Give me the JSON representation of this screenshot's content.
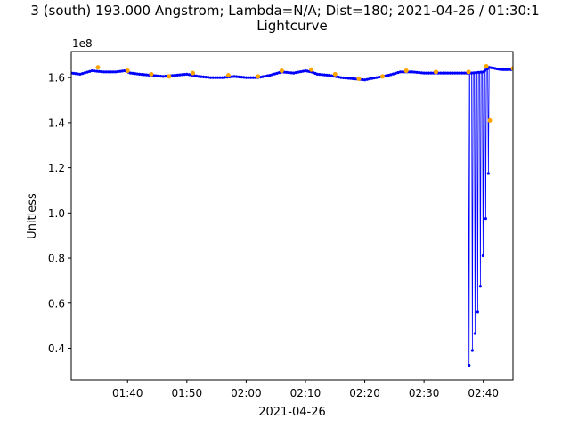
{
  "chart_data": {
    "type": "line",
    "title": "3 (south) 193.000 Angstrom; Lambda=N/A; Dist=180; 2021-04-26 / 01:30:1",
    "subtitle": "Lightcurve",
    "xlabel": "2021-04-26",
    "ylabel": "Unitless",
    "y_offset_label": "1e8",
    "x_unit": "minutes after 2021-04-26 00:00",
    "xlim": [
      90.5,
      165
    ],
    "ylim": [
      0.26,
      1.715
    ],
    "x_ticks": [
      100,
      110,
      120,
      130,
      140,
      150,
      160
    ],
    "x_tick_labels": [
      "01:40",
      "01:50",
      "02:00",
      "02:10",
      "02:20",
      "02:30",
      "02:40"
    ],
    "y_ticks": [
      0.4,
      0.6,
      0.8,
      1.0,
      1.2,
      1.4,
      1.6
    ],
    "y_tick_labels": [
      "0.4",
      "0.6",
      "0.8",
      "1.0",
      "1.2",
      "1.4",
      "1.6"
    ],
    "grid": false,
    "legend": "none",
    "colors": {
      "line": "#0000ff",
      "marker": "#ffa500"
    },
    "series": [
      {
        "style": "line-with-dots",
        "x": [
          90.5,
          92,
          94,
          96,
          98,
          99.5,
          100.5,
          102,
          104,
          106,
          108,
          110,
          112,
          114,
          116,
          118,
          120,
          122,
          124,
          126,
          128,
          130,
          131,
          132,
          134,
          136,
          138,
          140,
          142,
          144,
          146,
          148,
          150,
          152,
          154,
          156,
          158,
          160,
          161,
          162,
          163,
          164,
          165
        ],
        "values": [
          1.62,
          1.615,
          1.63,
          1.625,
          1.625,
          1.63,
          1.62,
          1.615,
          1.61,
          1.605,
          1.61,
          1.615,
          1.605,
          1.6,
          1.6,
          1.605,
          1.6,
          1.6,
          1.61,
          1.625,
          1.62,
          1.63,
          1.625,
          1.615,
          1.61,
          1.6,
          1.595,
          1.59,
          1.6,
          1.61,
          1.625,
          1.625,
          1.62,
          1.62,
          1.62,
          1.62,
          1.62,
          1.625,
          1.645,
          1.64,
          1.635,
          1.635,
          1.635
        ]
      },
      {
        "style": "dip-spikes",
        "x": [
          157.6,
          158.15,
          158.6,
          159.05,
          159.5,
          159.95,
          160.4,
          160.85
        ],
        "values": [
          0.325,
          0.39,
          0.465,
          0.56,
          0.675,
          0.81,
          0.975,
          1.175
        ],
        "peaks": [
          1.62,
          1.62,
          1.62,
          1.62,
          1.625,
          1.625,
          1.635,
          1.645
        ]
      },
      {
        "style": "markers",
        "x": [
          95,
          100,
          104,
          107,
          111,
          117,
          122,
          126,
          131,
          135,
          139,
          143,
          147,
          152,
          157.5,
          160.5,
          161.1,
          165
        ],
        "values": [
          1.645,
          1.63,
          1.615,
          1.605,
          1.62,
          1.61,
          1.605,
          1.63,
          1.635,
          1.615,
          1.595,
          1.605,
          1.63,
          1.625,
          1.625,
          1.65,
          1.41,
          1.64
        ]
      }
    ]
  }
}
